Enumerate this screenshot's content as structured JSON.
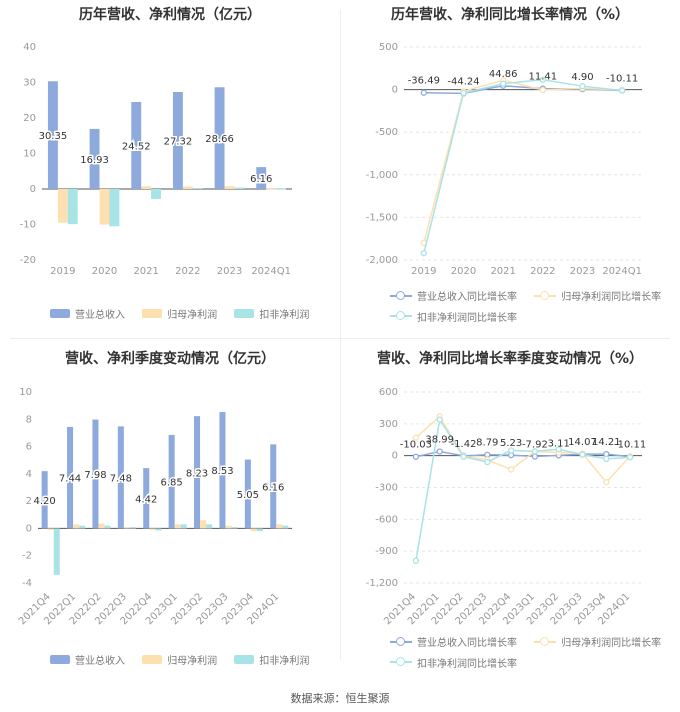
{
  "source": "数据来源：恒生聚源",
  "colors": {
    "revenue": "#8eaadc",
    "net_profit": "#fde0b0",
    "deducted_profit": "#a8e3e6"
  },
  "chart_data": [
    {
      "type": "bar",
      "title": "历年营收、净利情况（亿元）",
      "categories": [
        "2019",
        "2020",
        "2021",
        "2022",
        "2023",
        "2024Q1"
      ],
      "series": [
        {
          "name": "营业总收入",
          "values": [
            30.35,
            16.93,
            24.52,
            27.32,
            28.66,
            6.16
          ]
        },
        {
          "name": "归母净利润",
          "values": [
            -9.5,
            -10.0,
            0.8,
            0.7,
            0.8,
            0.1
          ]
        },
        {
          "name": "扣非净利润",
          "values": [
            -9.9,
            -10.5,
            -2.8,
            0.3,
            0.4,
            0.1
          ]
        }
      ],
      "data_labels": [
        "30.35",
        "16.93",
        "24.52",
        "27.32",
        "28.66",
        "6.16"
      ],
      "yticks": [
        "40",
        "30",
        "20",
        "10",
        "0",
        "-10",
        "-20"
      ],
      "ylim": [
        -20,
        40
      ],
      "grid": false,
      "legend": "bottom"
    },
    {
      "type": "line",
      "title": "历年营收、净利同比增长率情况（%）",
      "categories": [
        "2019",
        "2020",
        "2021",
        "2022",
        "2023",
        "2024Q1"
      ],
      "series": [
        {
          "name": "营业总收入同比增长率",
          "values": [
            -36.49,
            -44.24,
            44.86,
            11.41,
            4.9,
            -10.11
          ]
        },
        {
          "name": "归母净利润同比增长率",
          "values": [
            -1800,
            -20,
            110,
            -5,
            15,
            -5
          ]
        },
        {
          "name": "扣非净利润同比增长率",
          "values": [
            -1920,
            -40,
            70,
            115,
            40,
            -10
          ]
        }
      ],
      "data_labels": [
        "-36.49",
        "-44.24",
        "44.86",
        "11.41",
        "4.90",
        "-10.11"
      ],
      "yticks": [
        "500",
        "0",
        "-500",
        "-1,000",
        "-1,500",
        "-2,000"
      ],
      "ylim": [
        -2000,
        500
      ],
      "grid": true,
      "legend": "bottom"
    },
    {
      "type": "bar",
      "title": "营收、净利季度变动情况（亿元）",
      "categories": [
        "2021Q4",
        "2022Q1",
        "2022Q2",
        "2022Q3",
        "2022Q4",
        "2023Q1",
        "2023Q2",
        "2023Q3",
        "2023Q4",
        "2024Q1"
      ],
      "series": [
        {
          "name": "营业总收入",
          "values": [
            4.2,
            7.44,
            7.98,
            7.48,
            4.42,
            6.85,
            8.23,
            8.53,
            5.05,
            6.16
          ]
        },
        {
          "name": "归母净利润",
          "values": [
            -0.1,
            0.3,
            0.35,
            0.1,
            -0.1,
            0.3,
            0.6,
            0.2,
            -0.2,
            0.3
          ]
        },
        {
          "name": "扣非净利润",
          "values": [
            -3.4,
            0.2,
            0.2,
            0.1,
            -0.15,
            0.3,
            0.3,
            0.1,
            -0.2,
            0.2
          ]
        }
      ],
      "data_labels": [
        "4.20",
        "7.44",
        "7.98",
        "7.48",
        "4.42",
        "6.85",
        "8.23",
        "8.53",
        "5.05",
        "6.16"
      ],
      "yticks": [
        "10",
        "8",
        "6",
        "4",
        "2",
        "0",
        "-2",
        "-4"
      ],
      "ylim": [
        -4,
        10
      ],
      "grid": false,
      "legend": "bottom"
    },
    {
      "type": "line",
      "title": "营收、净利同比增长率季度变动情况（%）",
      "categories": [
        "2021Q4",
        "2022Q1",
        "2022Q2",
        "2022Q3",
        "2022Q4",
        "2023Q1",
        "2023Q2",
        "2023Q3",
        "2023Q4",
        "2024Q1"
      ],
      "series": [
        {
          "name": "营业总收入同比增长率",
          "values": [
            -10.03,
            38.99,
            -1.42,
            8.79,
            5.23,
            -7.92,
            3.11,
            14.07,
            14.21,
            -10.11
          ]
        },
        {
          "name": "归母净利润同比增长率",
          "values": [
            170,
            370,
            -5,
            -40,
            -130,
            40,
            30,
            20,
            -250,
            -5
          ]
        },
        {
          "name": "扣非净利润同比增长率",
          "values": [
            -990,
            340,
            -10,
            -60,
            50,
            40,
            60,
            10,
            -30,
            -15
          ]
        }
      ],
      "data_labels": [
        "-10.03",
        "38.99",
        "-1.42",
        "8.79",
        "5.23",
        "-7.92",
        "3.11",
        "14.07",
        "14.21",
        "-10.11"
      ],
      "yticks": [
        "600",
        "300",
        "0",
        "-300",
        "-600",
        "-900",
        "-1,200"
      ],
      "ylim": [
        -1200,
        600
      ],
      "grid": true,
      "legend": "bottom"
    }
  ]
}
